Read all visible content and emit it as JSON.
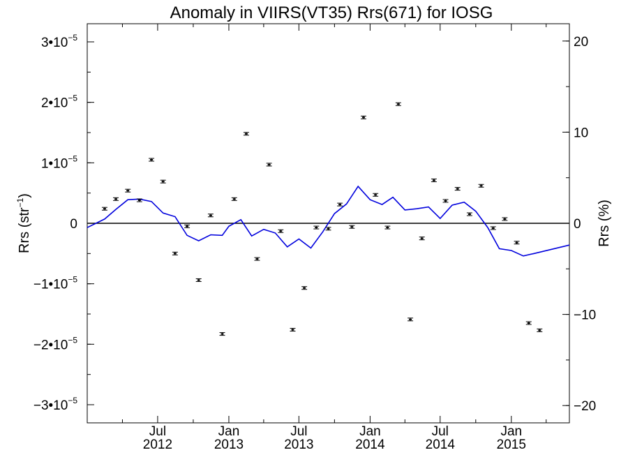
{
  "chart_data": {
    "type": "line",
    "title": "Anomaly in VIIRS(VT35) Rrs(671) for IOSG",
    "ylabel_left": {
      "base": "Rrs (str",
      "sup": "−1",
      "end": ")"
    },
    "ylabel_right": "Rrs (%)",
    "y_left": {
      "range": [
        -3.3e-05,
        3.3e-05
      ],
      "ticks": [
        {
          "value": -3e-05,
          "mant": "−3•10",
          "exp": "−5"
        },
        {
          "value": -2e-05,
          "mant": "−2•10",
          "exp": "−5"
        },
        {
          "value": -1e-05,
          "mant": "−1•10",
          "exp": "−5"
        },
        {
          "value": 0,
          "mant": "0",
          "exp": ""
        },
        {
          "value": 1e-05,
          "mant": "1•10",
          "exp": "−5"
        },
        {
          "value": 2e-05,
          "mant": "2•10",
          "exp": "−5"
        },
        {
          "value": 3e-05,
          "mant": "3•10",
          "exp": "−5"
        }
      ]
    },
    "y_right": {
      "range": [
        -21.9,
        21.9
      ],
      "ticks": [
        {
          "value": -20,
          "label": "−20"
        },
        {
          "value": -10,
          "label": "−10"
        },
        {
          "value": 0,
          "label": "0"
        },
        {
          "value": 10,
          "label": "10"
        },
        {
          "value": 20,
          "label": "20"
        }
      ]
    },
    "x_range": [
      "2012-01-01",
      "2015-05-31"
    ],
    "x_ticks": [
      {
        "date": "2012-07-01",
        "line1": "Jul",
        "line2": "2012"
      },
      {
        "date": "2013-01-01",
        "line1": "Jan",
        "line2": "2013"
      },
      {
        "date": "2013-07-01",
        "line1": "Jul",
        "line2": "2013"
      },
      {
        "date": "2014-01-01",
        "line1": "Jan",
        "line2": "2014"
      },
      {
        "date": "2014-07-01",
        "line1": "Jul",
        "line2": "2014"
      },
      {
        "date": "2015-01-01",
        "line1": "Jan",
        "line2": "2015"
      }
    ],
    "x_minor_ticks": [
      "2012-04-01",
      "2012-10-01",
      "2013-04-01",
      "2013-10-01",
      "2014-04-01",
      "2014-10-01",
      "2015-04-01"
    ],
    "zero_line": true,
    "series": [
      {
        "style": "errorbar-points",
        "color": "#000000",
        "points": [
          {
            "x": "2012-02-15",
            "y": 2.4e-06
          },
          {
            "x": "2012-03-15",
            "y": 4e-06
          },
          {
            "x": "2012-04-15",
            "y": 5.4e-06
          },
          {
            "x": "2012-05-15",
            "y": 3.8e-06
          },
          {
            "x": "2012-06-15",
            "y": 1.05e-05
          },
          {
            "x": "2012-07-15",
            "y": 6.9e-06
          },
          {
            "x": "2012-08-15",
            "y": -5e-06
          },
          {
            "x": "2012-09-15",
            "y": -5e-07
          },
          {
            "x": "2012-10-15",
            "y": -9.4e-06
          },
          {
            "x": "2012-11-15",
            "y": 1.3e-06
          },
          {
            "x": "2012-12-15",
            "y": -1.83e-05
          },
          {
            "x": "2013-01-15",
            "y": 4e-06
          },
          {
            "x": "2013-02-15",
            "y": 1.48e-05
          },
          {
            "x": "2013-03-15",
            "y": -5.9e-06
          },
          {
            "x": "2013-04-15",
            "y": 9.7e-06
          },
          {
            "x": "2013-05-15",
            "y": -1.3e-06
          },
          {
            "x": "2013-06-15",
            "y": -1.76e-05
          },
          {
            "x": "2013-07-15",
            "y": -1.07e-05
          },
          {
            "x": "2013-08-15",
            "y": -7e-07
          },
          {
            "x": "2013-09-15",
            "y": -9e-07
          },
          {
            "x": "2013-10-15",
            "y": 3.1e-06
          },
          {
            "x": "2013-11-15",
            "y": -6e-07
          },
          {
            "x": "2013-12-15",
            "y": 1.75e-05
          },
          {
            "x": "2014-01-15",
            "y": 4.7e-06
          },
          {
            "x": "2014-02-15",
            "y": -7e-07
          },
          {
            "x": "2014-03-15",
            "y": 1.97e-05
          },
          {
            "x": "2014-04-15",
            "y": -1.59e-05
          },
          {
            "x": "2014-05-15",
            "y": -2.5e-06
          },
          {
            "x": "2014-06-15",
            "y": 7.1e-06
          },
          {
            "x": "2014-07-15",
            "y": 3.7e-06
          },
          {
            "x": "2014-08-15",
            "y": 5.7e-06
          },
          {
            "x": "2014-09-15",
            "y": 1.5e-06
          },
          {
            "x": "2014-10-15",
            "y": 6.2e-06
          },
          {
            "x": "2014-11-15",
            "y": -8e-07
          },
          {
            "x": "2014-12-15",
            "y": 7e-07
          },
          {
            "x": "2015-01-15",
            "y": -3.2e-06
          },
          {
            "x": "2015-02-15",
            "y": -1.65e-05
          },
          {
            "x": "2015-03-15",
            "y": -1.77e-05
          }
        ]
      },
      {
        "style": "line",
        "color": "#0000dd",
        "points": [
          {
            "x": "2012-01-01",
            "y": -7e-07
          },
          {
            "x": "2012-02-15",
            "y": 7e-07
          },
          {
            "x": "2012-03-15",
            "y": 2.3e-06
          },
          {
            "x": "2012-04-15",
            "y": 3.9e-06
          },
          {
            "x": "2012-05-15",
            "y": 4e-06
          },
          {
            "x": "2012-06-15",
            "y": 3.6e-06
          },
          {
            "x": "2012-07-15",
            "y": 1.7e-06
          },
          {
            "x": "2012-08-15",
            "y": 1.1e-06
          },
          {
            "x": "2012-09-15",
            "y": -2e-06
          },
          {
            "x": "2012-10-15",
            "y": -2.9e-06
          },
          {
            "x": "2012-11-15",
            "y": -1.9e-06
          },
          {
            "x": "2012-12-15",
            "y": -2e-06
          },
          {
            "x": "2013-01-01",
            "y": -5e-07
          },
          {
            "x": "2013-02-01",
            "y": 6e-07
          },
          {
            "x": "2013-03-01",
            "y": -2.1e-06
          },
          {
            "x": "2013-04-01",
            "y": -1e-06
          },
          {
            "x": "2013-05-01",
            "y": -1.6e-06
          },
          {
            "x": "2013-06-01",
            "y": -3.9e-06
          },
          {
            "x": "2013-07-01",
            "y": -2.6e-06
          },
          {
            "x": "2013-08-01",
            "y": -4.1e-06
          },
          {
            "x": "2013-09-01",
            "y": -1.4e-06
          },
          {
            "x": "2013-10-01",
            "y": 1.6e-06
          },
          {
            "x": "2013-11-01",
            "y": 3.2e-06
          },
          {
            "x": "2013-12-01",
            "y": 6.1e-06
          },
          {
            "x": "2014-01-01",
            "y": 3.9e-06
          },
          {
            "x": "2014-02-01",
            "y": 3.1e-06
          },
          {
            "x": "2014-03-01",
            "y": 4.3e-06
          },
          {
            "x": "2014-04-01",
            "y": 2.2e-06
          },
          {
            "x": "2014-05-01",
            "y": 2.4e-06
          },
          {
            "x": "2014-06-01",
            "y": 2.7e-06
          },
          {
            "x": "2014-07-01",
            "y": 8e-07
          },
          {
            "x": "2014-08-01",
            "y": 3e-06
          },
          {
            "x": "2014-09-01",
            "y": 3.5e-06
          },
          {
            "x": "2014-10-01",
            "y": 2e-06
          },
          {
            "x": "2014-11-01",
            "y": -7e-07
          },
          {
            "x": "2014-12-01",
            "y": -4.2e-06
          },
          {
            "x": "2015-01-01",
            "y": -4.5e-06
          },
          {
            "x": "2015-02-01",
            "y": -5.4e-06
          },
          {
            "x": "2015-03-01",
            "y": -5e-06
          },
          {
            "x": "2015-05-31",
            "y": -3.6e-06
          }
        ]
      }
    ]
  }
}
